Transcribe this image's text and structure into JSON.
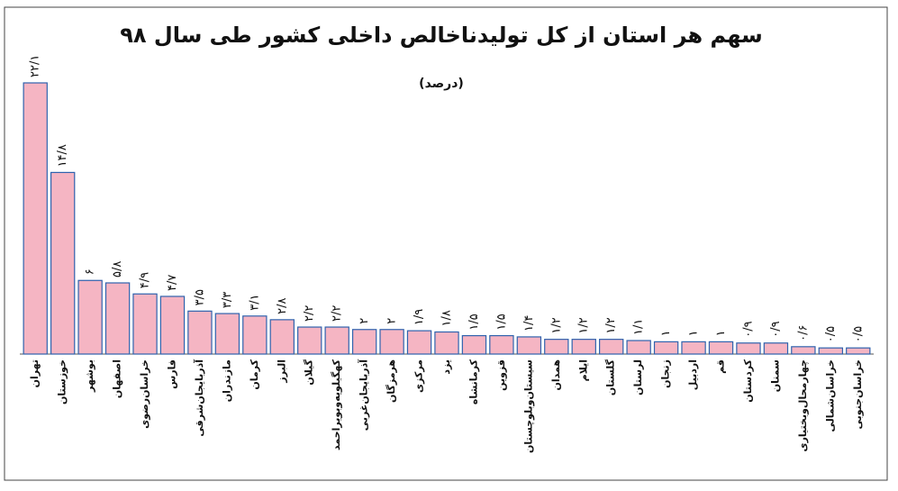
{
  "chart_data": {
    "type": "bar",
    "title": "سهم هر استان از کل تولیدناخالص داخلی کشور  طی سال ۹۸",
    "subtitle": "(درصد)",
    "color": "#f5b5c3",
    "edge_color": "#2f62ad",
    "categories": [
      "تهران",
      "خوزستان",
      "بوشهر",
      "اصفهان",
      "خراسان‌رضوی",
      "فارس",
      "آذربایجان‌شرقی",
      "مازندران",
      "کرمان",
      "البرز",
      "گیلان",
      "کهگیلویه‌وبویراحمد",
      "آذربایجان‌غربی",
      "هرمزگان",
      "مرکزی",
      "یزد",
      "کرمانشاه",
      "قزوین",
      "سیستان‌وبلوچستان",
      "همدان",
      "ایلام",
      "گلستان",
      "لرستان",
      "زنجان",
      "اردبیل",
      "قم",
      "کردستان",
      "سمنان",
      "چهارمحال‌وبختیاری",
      "خراسان‌شمالی",
      "خراسان‌جنوبی"
    ],
    "values": [
      22.1,
      14.8,
      6,
      5.8,
      4.9,
      4.7,
      3.5,
      3.3,
      3.1,
      2.8,
      2.2,
      2.2,
      2,
      2,
      1.9,
      1.8,
      1.5,
      1.5,
      1.4,
      1.2,
      1.2,
      1.2,
      1.1,
      1,
      1,
      1,
      0.9,
      0.9,
      0.6,
      0.5,
      0.5
    ],
    "value_labels": [
      "۲۲/۱",
      "۱۴/۸",
      "۶",
      "۵/۸",
      "۴/۹",
      "۴/۷",
      "۳/۵",
      "۳/۳",
      "۳/۱",
      "۲/۸",
      "۲/۲",
      "۲/۲",
      "۲",
      "۲",
      "۱/۹",
      "۱/۸",
      "۱/۵",
      "۱/۵",
      "۱/۴",
      "۱/۲",
      "۱/۲",
      "۱/۲",
      "۱/۱",
      "۱",
      "۱",
      "۱",
      "۰/۹",
      "۰/۹",
      "۰/۶",
      "۰/۵",
      "۰/۵"
    ]
  }
}
